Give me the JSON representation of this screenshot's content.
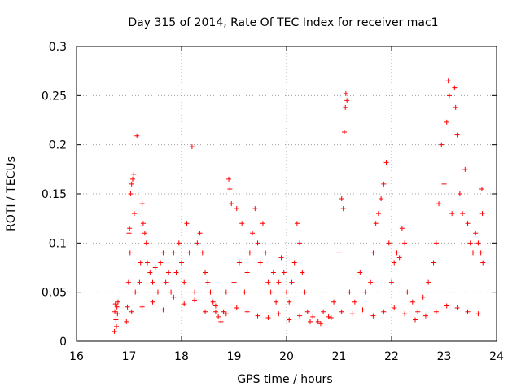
{
  "chart_data": {
    "type": "scatter",
    "title": "Day 315 of 2014, Rate Of TEC Index for receiver mac1",
    "xlabel": "GPS time / hours",
    "ylabel": "ROTI / TECUs",
    "xlim": [
      16,
      24
    ],
    "ylim": [
      0,
      0.3
    ],
    "x_ticks": [
      16,
      17,
      18,
      19,
      20,
      21,
      22,
      23,
      24
    ],
    "x_tick_labels": [
      "16",
      "17",
      "18",
      "19",
      "20",
      "21",
      "22",
      "23",
      "24"
    ],
    "y_ticks": [
      0,
      0.05,
      0.1,
      0.15,
      0.2,
      0.25,
      0.3
    ],
    "y_tick_labels": [
      "0",
      "0.05",
      "0.1",
      "0.15",
      "0.2",
      "0.25",
      "0.3"
    ],
    "grid": true,
    "marker": "+",
    "series": [
      {
        "name": "ROTI",
        "color": "#ff0000",
        "points": [
          [
            16.72,
            0.01
          ],
          [
            16.73,
            0.03
          ],
          [
            16.74,
            0.038
          ],
          [
            16.75,
            0.022
          ],
          [
            16.76,
            0.015
          ],
          [
            16.77,
            0.035
          ],
          [
            16.78,
            0.028
          ],
          [
            16.79,
            0.04
          ],
          [
            16.95,
            0.02
          ],
          [
            16.97,
            0.035
          ],
          [
            16.99,
            0.06
          ],
          [
            17.0,
            0.11
          ],
          [
            17.01,
            0.115
          ],
          [
            17.02,
            0.09
          ],
          [
            17.03,
            0.15
          ],
          [
            17.05,
            0.16
          ],
          [
            17.07,
            0.165
          ],
          [
            17.09,
            0.17
          ],
          [
            17.1,
            0.13
          ],
          [
            17.12,
            0.05
          ],
          [
            17.15,
            0.209
          ],
          [
            17.2,
            0.06
          ],
          [
            17.22,
            0.08
          ],
          [
            17.25,
            0.14
          ],
          [
            17.27,
            0.12
          ],
          [
            17.3,
            0.11
          ],
          [
            17.33,
            0.1
          ],
          [
            17.35,
            0.08
          ],
          [
            17.4,
            0.07
          ],
          [
            17.45,
            0.06
          ],
          [
            17.5,
            0.075
          ],
          [
            17.55,
            0.05
          ],
          [
            17.6,
            0.08
          ],
          [
            17.65,
            0.09
          ],
          [
            17.7,
            0.06
          ],
          [
            17.75,
            0.07
          ],
          [
            17.8,
            0.05
          ],
          [
            17.85,
            0.09
          ],
          [
            17.9,
            0.07
          ],
          [
            17.95,
            0.1
          ],
          [
            18.0,
            0.08
          ],
          [
            18.05,
            0.06
          ],
          [
            18.1,
            0.12
          ],
          [
            18.15,
            0.09
          ],
          [
            18.2,
            0.198
          ],
          [
            18.25,
            0.05
          ],
          [
            18.3,
            0.1
          ],
          [
            18.35,
            0.11
          ],
          [
            18.4,
            0.09
          ],
          [
            18.45,
            0.07
          ],
          [
            18.5,
            0.06
          ],
          [
            18.55,
            0.05
          ],
          [
            18.6,
            0.04
          ],
          [
            18.65,
            0.03
          ],
          [
            18.7,
            0.025
          ],
          [
            18.75,
            0.02
          ],
          [
            18.8,
            0.03
          ],
          [
            18.85,
            0.05
          ],
          [
            18.9,
            0.165
          ],
          [
            18.92,
            0.155
          ],
          [
            18.95,
            0.14
          ],
          [
            19.0,
            0.06
          ],
          [
            19.05,
            0.135
          ],
          [
            19.1,
            0.08
          ],
          [
            19.15,
            0.12
          ],
          [
            19.2,
            0.05
          ],
          [
            19.25,
            0.07
          ],
          [
            19.3,
            0.09
          ],
          [
            19.35,
            0.11
          ],
          [
            19.4,
            0.135
          ],
          [
            19.45,
            0.1
          ],
          [
            19.5,
            0.08
          ],
          [
            19.55,
            0.12
          ],
          [
            19.6,
            0.09
          ],
          [
            19.65,
            0.06
          ],
          [
            19.7,
            0.05
          ],
          [
            19.75,
            0.07
          ],
          [
            19.8,
            0.04
          ],
          [
            19.85,
            0.06
          ],
          [
            19.9,
            0.085
          ],
          [
            19.95,
            0.07
          ],
          [
            20.0,
            0.05
          ],
          [
            20.05,
            0.04
          ],
          [
            20.1,
            0.06
          ],
          [
            20.15,
            0.08
          ],
          [
            20.2,
            0.12
          ],
          [
            20.25,
            0.1
          ],
          [
            20.3,
            0.07
          ],
          [
            20.35,
            0.05
          ],
          [
            20.4,
            0.03
          ],
          [
            20.5,
            0.025
          ],
          [
            20.6,
            0.02
          ],
          [
            20.7,
            0.03
          ],
          [
            20.8,
            0.025
          ],
          [
            20.9,
            0.04
          ],
          [
            21.0,
            0.09
          ],
          [
            21.05,
            0.145
          ],
          [
            21.08,
            0.135
          ],
          [
            21.1,
            0.213
          ],
          [
            21.12,
            0.238
          ],
          [
            21.13,
            0.252
          ],
          [
            21.15,
            0.245
          ],
          [
            21.2,
            0.05
          ],
          [
            21.3,
            0.04
          ],
          [
            21.4,
            0.07
          ],
          [
            21.5,
            0.05
          ],
          [
            21.6,
            0.06
          ],
          [
            21.65,
            0.09
          ],
          [
            21.7,
            0.12
          ],
          [
            21.75,
            0.13
          ],
          [
            21.8,
            0.145
          ],
          [
            21.85,
            0.16
          ],
          [
            21.9,
            0.182
          ],
          [
            21.95,
            0.1
          ],
          [
            22.0,
            0.06
          ],
          [
            22.05,
            0.08
          ],
          [
            22.1,
            0.09
          ],
          [
            22.15,
            0.085
          ],
          [
            22.2,
            0.115
          ],
          [
            22.25,
            0.1
          ],
          [
            22.3,
            0.05
          ],
          [
            22.4,
            0.04
          ],
          [
            22.5,
            0.03
          ],
          [
            22.6,
            0.045
          ],
          [
            22.7,
            0.06
          ],
          [
            22.8,
            0.08
          ],
          [
            22.85,
            0.1
          ],
          [
            22.9,
            0.14
          ],
          [
            22.95,
            0.2
          ],
          [
            23.0,
            0.16
          ],
          [
            23.05,
            0.223
          ],
          [
            23.08,
            0.265
          ],
          [
            23.1,
            0.25
          ],
          [
            23.15,
            0.13
          ],
          [
            23.2,
            0.258
          ],
          [
            23.22,
            0.238
          ],
          [
            23.25,
            0.21
          ],
          [
            23.3,
            0.15
          ],
          [
            23.35,
            0.13
          ],
          [
            23.4,
            0.175
          ],
          [
            23.45,
            0.12
          ],
          [
            23.5,
            0.1
          ],
          [
            23.55,
            0.09
          ],
          [
            23.6,
            0.11
          ],
          [
            23.65,
            0.1
          ],
          [
            23.7,
            0.09
          ],
          [
            23.72,
            0.155
          ],
          [
            23.73,
            0.13
          ],
          [
            23.74,
            0.08
          ],
          [
            17.05,
            0.03
          ],
          [
            17.25,
            0.035
          ],
          [
            17.45,
            0.04
          ],
          [
            17.65,
            0.032
          ],
          [
            17.85,
            0.045
          ],
          [
            18.05,
            0.038
          ],
          [
            18.25,
            0.042
          ],
          [
            18.45,
            0.03
          ],
          [
            18.65,
            0.036
          ],
          [
            18.85,
            0.028
          ],
          [
            19.05,
            0.034
          ],
          [
            19.25,
            0.03
          ],
          [
            19.45,
            0.026
          ],
          [
            19.65,
            0.024
          ],
          [
            19.85,
            0.028
          ],
          [
            20.05,
            0.022
          ],
          [
            20.25,
            0.026
          ],
          [
            20.45,
            0.02
          ],
          [
            20.65,
            0.018
          ],
          [
            20.85,
            0.024
          ],
          [
            21.05,
            0.03
          ],
          [
            21.25,
            0.028
          ],
          [
            21.45,
            0.032
          ],
          [
            21.65,
            0.026
          ],
          [
            21.85,
            0.03
          ],
          [
            22.05,
            0.034
          ],
          [
            22.25,
            0.028
          ],
          [
            22.45,
            0.022
          ],
          [
            22.65,
            0.026
          ],
          [
            22.85,
            0.03
          ],
          [
            23.05,
            0.036
          ],
          [
            23.25,
            0.034
          ],
          [
            23.45,
            0.03
          ],
          [
            23.65,
            0.028
          ]
        ]
      }
    ]
  }
}
